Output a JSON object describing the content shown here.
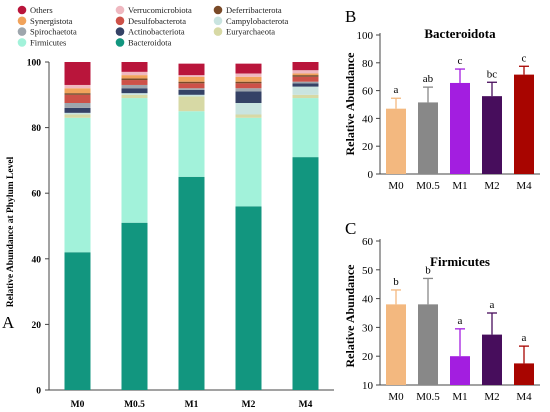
{
  "chart_data": [
    {
      "panel": "A",
      "type": "stacked-bar",
      "categories": [
        "M0",
        "M0.5",
        "M1",
        "M2",
        "M4"
      ],
      "xlabel": "",
      "ylabel": "Relative Abundance at Phylum Level",
      "ylim": [
        0,
        100
      ],
      "yticks": [
        0,
        20,
        40,
        60,
        80,
        100
      ],
      "legend_position": "top",
      "series": [
        {
          "name": "Bacteroidota",
          "color": "#12967f",
          "values": [
            42,
            51,
            65,
            56,
            71
          ]
        },
        {
          "name": "Firmicutes",
          "color": "#a2f2da",
          "values": [
            41,
            38,
            20,
            27,
            18
          ]
        },
        {
          "name": "Euryarchaeota",
          "color": "#d7d9a5",
          "values": [
            1,
            1,
            4.5,
            1,
            1
          ]
        },
        {
          "name": "Campylobacterota",
          "color": "#c9e4e0",
          "values": [
            0.5,
            0.5,
            0.5,
            3.5,
            2.5
          ]
        },
        {
          "name": "Actinobacteriota",
          "color": "#354266",
          "values": [
            1.5,
            1.5,
            1.5,
            3.5,
            1
          ]
        },
        {
          "name": "Spirochaetota",
          "color": "#9ea6ad",
          "values": [
            1.5,
            1,
            0.5,
            1,
            0.5
          ]
        },
        {
          "name": "Desulfobacterota",
          "color": "#cd5148",
          "values": [
            2.5,
            1.5,
            1.5,
            1.5,
            1.5
          ]
        },
        {
          "name": "Deferribacterota",
          "color": "#7a4a28",
          "values": [
            0.5,
            0.5,
            0.5,
            0.5,
            0.5
          ]
        },
        {
          "name": "Synergistota",
          "color": "#f1a35b",
          "values": [
            1.5,
            1,
            1.5,
            1.5,
            0.5
          ]
        },
        {
          "name": "Verrucomicrobiota",
          "color": "#efb8c0",
          "values": [
            1,
            1,
            0.5,
            1,
            1
          ]
        },
        {
          "name": "Others",
          "color": "#b9153b",
          "values": [
            7,
            3,
            3.5,
            3,
            2.5
          ]
        }
      ],
      "legend_order": [
        "Others",
        "Verrucomicrobiota",
        "Deferribacterota",
        "Synergistota",
        "Desulfobacterota",
        "Campylobacterota",
        "Spirochaetota",
        "Actinobacteriota",
        "Euryarchaeota",
        "Firmicutes",
        "Bacteroidota"
      ]
    },
    {
      "panel": "B",
      "type": "bar",
      "title": "Bacteroidota",
      "categories": [
        "M0",
        "M0.5",
        "M1",
        "M2",
        "M4"
      ],
      "values": [
        47,
        51.5,
        65.5,
        56,
        71.5
      ],
      "errors": [
        7.5,
        11,
        10,
        10,
        6
      ],
      "significance": [
        "a",
        "ab",
        "c",
        "bc",
        "c"
      ],
      "colors": [
        "#f3b87f",
        "#888888",
        "#a31ee0",
        "#470d5c",
        "#a80500"
      ],
      "xlabel": "",
      "ylabel": "Relative Abundance",
      "ylim": [
        0,
        100
      ],
      "yticks": [
        0,
        20,
        40,
        60,
        80,
        100
      ]
    },
    {
      "panel": "C",
      "type": "bar",
      "title": "Firmicutes",
      "categories": [
        "M0",
        "M0.5",
        "M1",
        "M2",
        "M4"
      ],
      "values": [
        38,
        38,
        20,
        27.5,
        17.5
      ],
      "errors": [
        5,
        9,
        9.5,
        7.5,
        6
      ],
      "significance": [
        "b",
        "b",
        "a",
        "a",
        "a"
      ],
      "colors": [
        "#f3b87f",
        "#888888",
        "#a31ee0",
        "#470d5c",
        "#a80500"
      ],
      "xlabel": "",
      "ylabel": "Relative Abundance",
      "ylim": [
        10,
        60
      ],
      "yticks": [
        10,
        20,
        30,
        40,
        50,
        60
      ]
    }
  ],
  "panel_labels": {
    "a": "A",
    "b": "B",
    "c": "C"
  }
}
